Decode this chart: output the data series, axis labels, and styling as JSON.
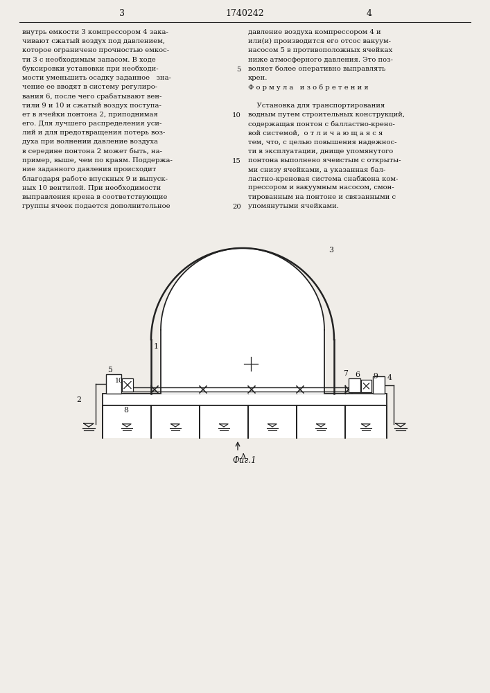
{
  "bg_color": "#f0ede8",
  "line_color": "#222222",
  "text_color": "#111111",
  "header_text": "1740242",
  "page_left": "3",
  "page_right": "4",
  "fig_label": "Фиг.1",
  "left_col_text": [
    "внутрь емкости 3 компрессором 4 зака-",
    "чивают сжатый воздух под давлением,",
    "которое ограничено прочностью емкос-",
    "ти 3 с необходимым запасом. В ходе",
    "буксировки установки при необходи-",
    "мости уменьшить осадку заданное   зна-",
    "чение ее вводят в систему регулиро-",
    "вания 6, после чего срабатывают вен-",
    "тили 9 и 10 и сжатый воздух поступа-",
    "ет в ячейки понтона 2, приподнимая",
    "его. Для лучшего распределения уси-",
    "лий и для предотвращения потерь воз-",
    "духа при волнении давление воздуха",
    "в середине понтона 2 может быть, на-",
    "пример, выше, чем по краям. Поддержа-",
    "ние заданного давления происходит",
    "благодаря работе впускных 9 и выпуск-",
    "ных 10 вентилей. При необходимости",
    "выправления крена в соответствующие",
    "группы ячеек подается дополнительное"
  ],
  "right_col_text": [
    "давление воздуха компрессором 4 и",
    "или(и) производится его отсос вакуум-",
    "насосом 5 в противоположных ячейках",
    "ниже атмосферного давления. Это поз-",
    "воляет более оперативно выправлять",
    "крен.",
    "Ф о р м у л а   и з о б р е т е н и я",
    "",
    "    Установка для транспортирования",
    "водным путем строительных конструкций,",
    "содержащая понтон с балластно-крено-",
    "вой системой,  о т л и ч а ю щ а я с я",
    "тем, что, с целью повышения надежнос-",
    "ти в эксплуатации, днище упомянутого",
    "понтона выполнено ячеистым с открыты-",
    "ми снизу ячейками, а указанная бал-",
    "ластно-креновая система снабжена ком-",
    "прессором и вакуумным насосом, смон-",
    "тированным на понтоне и связанными с",
    "упомянутыми ячейками."
  ],
  "line_numbers": [
    "5",
    "10",
    "15",
    "20"
  ]
}
